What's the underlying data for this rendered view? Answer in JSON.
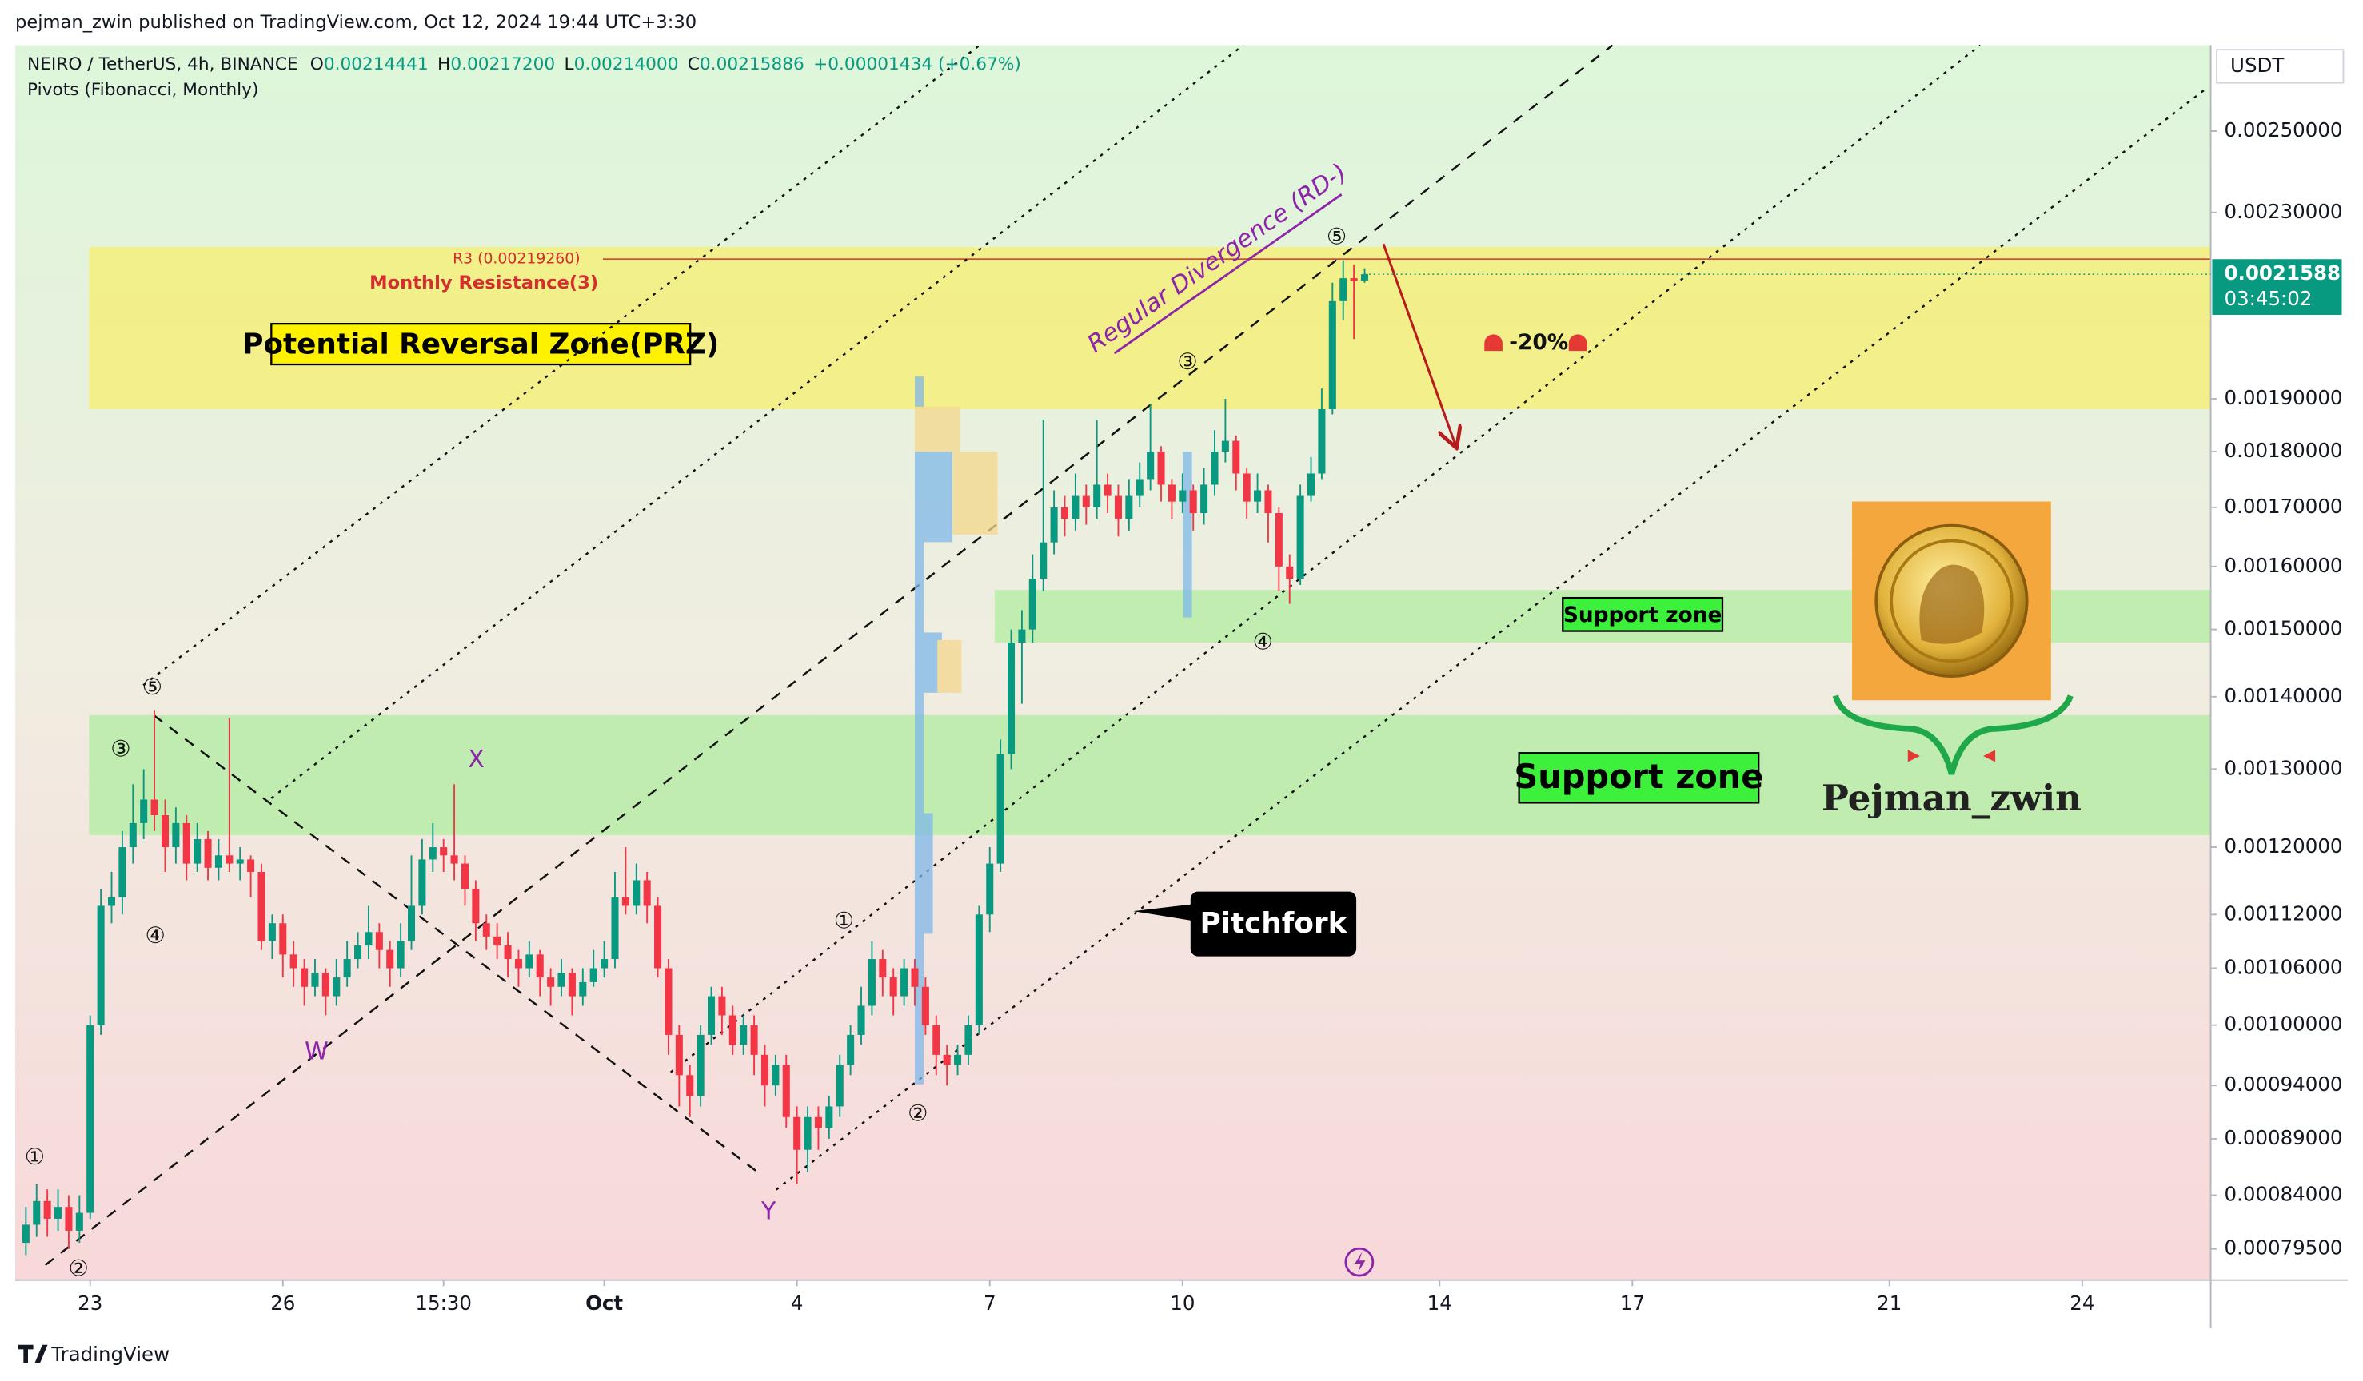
{
  "header": "pejman_zwin published on TradingView.com, Oct 12, 2024 19:44 UTC+3:30",
  "footer": "TradingView",
  "chart_data": {
    "type": "candlestick",
    "legend": {
      "symbol": "NEIRO / TetherUS, 4h, BINANCE",
      "fields": [
        {
          "label": "O",
          "value": "0.00214441"
        },
        {
          "label": "H",
          "value": "0.00217200"
        },
        {
          "label": "L",
          "value": "0.00214000"
        },
        {
          "label": "C",
          "value": "0.00215886"
        }
      ],
      "change": "+0.00001434 (+0.67%)"
    },
    "indicator": "Pivots (Fibonacci, Monthly)",
    "currency": "USDT",
    "countdown": "03:45:02",
    "colors": {
      "up": "#089981",
      "down": "#f23645"
    },
    "log_scale": true,
    "ylim": [
      0.00077,
      0.00273
    ],
    "yticks": [
      {
        "value": 0.0025,
        "label": "0.00250000"
      },
      {
        "value": 0.0023,
        "label": "0.00230000"
      },
      {
        "value": 0.0019,
        "label": "0.00190000"
      },
      {
        "value": 0.0018,
        "label": "0.00180000"
      },
      {
        "value": 0.0017,
        "label": "0.00170000"
      },
      {
        "value": 0.0016,
        "label": "0.00160000"
      },
      {
        "value": 0.0015,
        "label": "0.00150000"
      },
      {
        "value": 0.0014,
        "label": "0.00140000"
      },
      {
        "value": 0.0013,
        "label": "0.00130000"
      },
      {
        "value": 0.0012,
        "label": "0.00120000"
      },
      {
        "value": 0.00112,
        "label": "0.00112000"
      },
      {
        "value": 0.00106,
        "label": "0.00106000"
      },
      {
        "value": 0.001,
        "label": "0.00100000"
      },
      {
        "value": 0.00094,
        "label": "0.00094000"
      },
      {
        "value": 0.00089,
        "label": "0.00089000"
      },
      {
        "value": 0.00084,
        "label": "0.00084000"
      },
      {
        "value": 0.000795,
        "label": "0.00079500"
      }
    ],
    "xlim": [
      -1,
      204
    ],
    "xticks": [
      {
        "value": 6,
        "label": "23"
      },
      {
        "value": 24,
        "label": "26"
      },
      {
        "value": 39,
        "label": "15:30"
      },
      {
        "value": 54,
        "label": "Oct"
      },
      {
        "value": 72,
        "label": "4"
      },
      {
        "value": 90,
        "label": "7"
      },
      {
        "value": 108,
        "label": "10"
      },
      {
        "value": 132,
        "label": "14"
      },
      {
        "value": 150,
        "label": "17"
      },
      {
        "value": 174,
        "label": "21"
      },
      {
        "value": 192,
        "label": "24"
      }
    ],
    "open": [
      0.0008,
      0.000815,
      0.000835,
      0.00082,
      0.00083,
      0.00081,
      0.000825,
      0.001,
      0.00113,
      0.00114,
      0.0012,
      0.00123,
      0.00126,
      0.00124,
      0.0012,
      0.00123,
      0.00118,
      0.00121,
      0.001175,
      0.00119,
      0.00118,
      0.001185,
      0.00117,
      0.00109,
      0.00111,
      0.001075,
      0.00106,
      0.00104,
      0.001055,
      0.00103,
      0.00105,
      0.00107,
      0.001085,
      0.0011,
      0.00108,
      0.00106,
      0.00109,
      0.00113,
      0.001185,
      0.0012,
      0.00119,
      0.00118,
      0.00115,
      0.00111,
      0.001095,
      0.001085,
      0.00107,
      0.00106,
      0.001075,
      0.00105,
      0.00104,
      0.001055,
      0.00103,
      0.001045,
      0.00106,
      0.00107,
      0.00114,
      0.00113,
      0.00116,
      0.00113,
      0.00106,
      0.00099,
      0.00095,
      0.00093,
      0.00099,
      0.00103,
      0.00101,
      0.00098,
      0.001,
      0.00097,
      0.00094,
      0.00096,
      0.00091,
      0.00088,
      0.00091,
      0.0009,
      0.00092,
      0.00096,
      0.00099,
      0.00102,
      0.00107,
      0.00105,
      0.00103,
      0.00106,
      0.00104,
      0.001,
      0.00097,
      0.00096,
      0.00097,
      0.001,
      0.00112,
      0.00118,
      0.00132,
      0.00148,
      0.0015,
      0.00158,
      0.00164,
      0.0017,
      0.00168,
      0.00172,
      0.0017,
      0.00174,
      0.00172,
      0.00168,
      0.00172,
      0.00175,
      0.0018,
      0.00174,
      0.00171,
      0.00173,
      0.00169,
      0.00174,
      0.0018,
      0.00182,
      0.00176,
      0.00171,
      0.00173,
      0.00169,
      0.0016,
      0.00158,
      0.00172,
      0.00176,
      0.00188,
      0.0021,
      0.00215,
      0.00214441
    ],
    "high": [
      0.00083,
      0.00085,
      0.000845,
      0.000845,
      0.00084,
      0.00084,
      0.00101,
      0.00115,
      0.00117,
      0.00122,
      0.00128,
      0.0013,
      0.00138,
      0.00126,
      0.00125,
      0.00124,
      0.00123,
      0.00122,
      0.00121,
      0.00137,
      0.0012,
      0.00119,
      0.00118,
      0.00112,
      0.00112,
      0.00109,
      0.00107,
      0.00107,
      0.00106,
      0.00107,
      0.00109,
      0.0011,
      0.00113,
      0.00111,
      0.00109,
      0.00111,
      0.00119,
      0.00121,
      0.00123,
      0.00121,
      0.00128,
      0.00119,
      0.00116,
      0.00112,
      0.00111,
      0.0011,
      0.00108,
      0.00109,
      0.00108,
      0.00106,
      0.00107,
      0.00106,
      0.00106,
      0.00108,
      0.00109,
      0.00117,
      0.0012,
      0.00118,
      0.00117,
      0.00114,
      0.00107,
      0.001,
      0.00096,
      0.001,
      0.00104,
      0.00104,
      0.00102,
      0.00101,
      0.00101,
      0.00098,
      0.00097,
      0.00097,
      0.00092,
      0.00092,
      0.00092,
      0.00093,
      0.00097,
      0.001,
      0.00104,
      0.00109,
      0.00108,
      0.00106,
      0.00107,
      0.00107,
      0.00105,
      0.00101,
      0.00098,
      0.00098,
      0.00101,
      0.00113,
      0.0012,
      0.00134,
      0.0015,
      0.00153,
      0.00162,
      0.00186,
      0.00173,
      0.00172,
      0.00176,
      0.00174,
      0.00186,
      0.00176,
      0.00174,
      0.00175,
      0.00178,
      0.00189,
      0.00181,
      0.00175,
      0.00176,
      0.00174,
      0.00177,
      0.00184,
      0.0019,
      0.00183,
      0.00177,
      0.00176,
      0.00174,
      0.0017,
      0.00162,
      0.00174,
      0.00179,
      0.00192,
      0.00214,
      0.00219,
      0.00218,
      0.002172
    ],
    "low": [
      0.00079,
      0.000805,
      0.000805,
      0.00081,
      0.000795,
      0.0008,
      0.00082,
      0.00099,
      0.00111,
      0.00112,
      0.00118,
      0.00121,
      0.00122,
      0.00117,
      0.00118,
      0.00116,
      0.00117,
      0.00116,
      0.00116,
      0.00117,
      0.00116,
      0.00114,
      0.00108,
      0.00107,
      0.00105,
      0.00104,
      0.00102,
      0.00103,
      0.00101,
      0.00102,
      0.00104,
      0.00106,
      0.00107,
      0.00106,
      0.00104,
      0.00105,
      0.00108,
      0.00112,
      0.00117,
      0.00117,
      0.00116,
      0.00113,
      0.00109,
      0.00108,
      0.00107,
      0.00105,
      0.00104,
      0.00105,
      0.00103,
      0.00102,
      0.00103,
      0.00101,
      0.00102,
      0.00104,
      0.00105,
      0.00106,
      0.00112,
      0.00112,
      0.00111,
      0.00105,
      0.00097,
      0.00092,
      0.00091,
      0.00092,
      0.00098,
      0.00099,
      0.00097,
      0.00097,
      0.00095,
      0.00092,
      0.00093,
      0.0009,
      0.00085,
      0.00086,
      0.00088,
      0.00089,
      0.00091,
      0.00095,
      0.00098,
      0.00101,
      0.00103,
      0.00101,
      0.00102,
      0.00102,
      0.00099,
      0.00095,
      0.00094,
      0.00095,
      0.00096,
      0.00099,
      0.0011,
      0.00117,
      0.0013,
      0.00139,
      0.00148,
      0.00156,
      0.00162,
      0.00165,
      0.00166,
      0.00167,
      0.00168,
      0.00169,
      0.00165,
      0.00166,
      0.0017,
      0.00173,
      0.00171,
      0.00168,
      0.00169,
      0.00166,
      0.00167,
      0.00172,
      0.00178,
      0.00173,
      0.00168,
      0.00169,
      0.00164,
      0.00156,
      0.00154,
      0.00157,
      0.00171,
      0.00175,
      0.00187,
      0.00206,
      0.00202,
      0.00214
    ],
    "close": [
      0.000815,
      0.000835,
      0.00082,
      0.00083,
      0.00081,
      0.000825,
      0.001,
      0.00113,
      0.00114,
      0.0012,
      0.00123,
      0.00126,
      0.00124,
      0.0012,
      0.00123,
      0.00118,
      0.00121,
      0.001175,
      0.00119,
      0.00118,
      0.001185,
      0.00117,
      0.00109,
      0.00111,
      0.001075,
      0.00106,
      0.00104,
      0.001055,
      0.00103,
      0.00105,
      0.00107,
      0.001085,
      0.0011,
      0.00108,
      0.00106,
      0.00109,
      0.00113,
      0.001185,
      0.0012,
      0.00119,
      0.00118,
      0.00115,
      0.00111,
      0.001095,
      0.001085,
      0.00107,
      0.00106,
      0.001075,
      0.00105,
      0.00104,
      0.001055,
      0.00103,
      0.001045,
      0.00106,
      0.00107,
      0.00114,
      0.00113,
      0.00116,
      0.00113,
      0.00106,
      0.00099,
      0.00095,
      0.00093,
      0.00099,
      0.00103,
      0.00101,
      0.00098,
      0.001,
      0.00097,
      0.00094,
      0.00096,
      0.00091,
      0.00088,
      0.00091,
      0.0009,
      0.00092,
      0.00096,
      0.00099,
      0.00102,
      0.00107,
      0.00105,
      0.00103,
      0.00106,
      0.00104,
      0.001,
      0.00097,
      0.00096,
      0.00097,
      0.001,
      0.00112,
      0.00118,
      0.00132,
      0.00148,
      0.0015,
      0.00158,
      0.00164,
      0.0017,
      0.00168,
      0.00172,
      0.0017,
      0.00174,
      0.00172,
      0.00168,
      0.00172,
      0.00175,
      0.0018,
      0.00174,
      0.00171,
      0.00173,
      0.00169,
      0.00174,
      0.0018,
      0.00182,
      0.00176,
      0.00171,
      0.00173,
      0.00169,
      0.0016,
      0.00158,
      0.00172,
      0.00176,
      0.00188,
      0.0021,
      0.00215,
      0.00214441,
      0.00215886
    ],
    "pivot": {
      "label": "R3 (0.00219260)",
      "value": 0.0021926,
      "name": "Monthly Resistance(3)",
      "color": "#d32f2f"
    },
    "zones": [
      {
        "label": "Potential Reversal Zone(PRZ)",
        "range": [
          0.00188,
          0.00222
        ],
        "color": "#f4ee7c"
      },
      {
        "label": "Support zone",
        "range": [
          0.00148,
          0.001562
        ],
        "color": "#b8eca8"
      },
      {
        "label": "Support zone",
        "range": [
          0.001215,
          0.001374
        ],
        "color": "#b8eca8"
      }
    ],
    "annotations": {
      "divergence": "Regular Divergence (RD-)",
      "target": "-20%",
      "pitchfork": "Pitchfork",
      "author": "Pejman_zwin"
    },
    "wave_labels": [
      "①",
      "②",
      "③",
      "④",
      "⑤",
      "W",
      "X",
      "Y",
      "①",
      "②",
      "③",
      "④",
      "⑤"
    ]
  }
}
